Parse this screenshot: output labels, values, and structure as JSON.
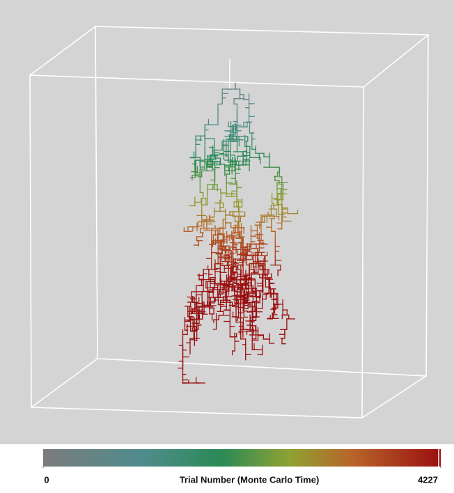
{
  "colorbar": {
    "label": "Trial Number (Monte Carlo Time)",
    "ticks": [
      0,
      4227
    ]
  }
}
